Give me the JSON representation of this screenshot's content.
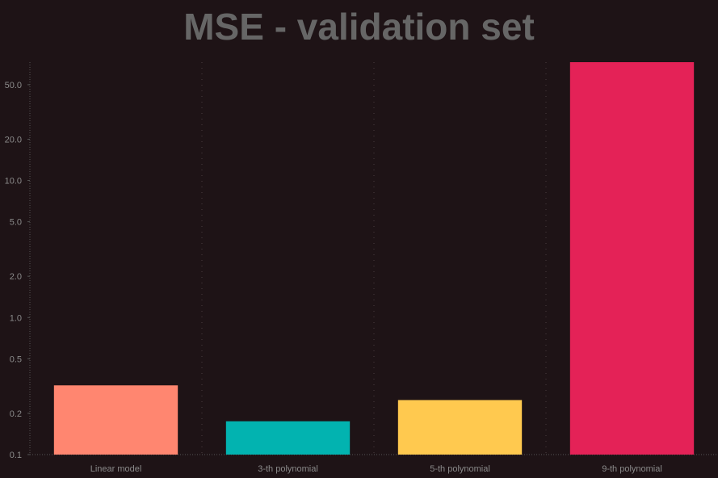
{
  "chart_data": {
    "type": "bar",
    "title": "MSE - validation set",
    "categories": [
      "Linear model",
      "3-th polynomial",
      "5-th polynomial",
      "9-th polynomial"
    ],
    "values": [
      0.32,
      0.175,
      0.25,
      73
    ],
    "colors": [
      "#ff8670",
      "#02b3b0",
      "#ffc94f",
      "#e42257"
    ],
    "y_scale": "log",
    "ylim": [
      0.1,
      73
    ],
    "yticks": [
      0.1,
      0.2,
      0.5,
      1.0,
      2.0,
      5.0,
      10.0,
      20.0,
      50.0
    ],
    "ytick_labels": [
      "0.1",
      "0.2",
      "0.5",
      "1.0",
      "2.0",
      "5.0",
      "10.0",
      "20.0",
      "50.0"
    ],
    "xlabel": "",
    "ylabel": "",
    "grid": "vertical dotted",
    "legend": "none"
  }
}
